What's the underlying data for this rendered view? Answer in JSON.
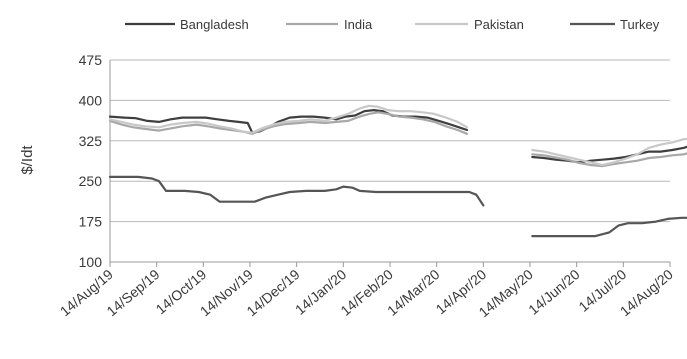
{
  "chart_data": {
    "type": "line",
    "ylabel": "$/Idt",
    "ylim": [
      100,
      475
    ],
    "yticks": [
      100,
      175,
      250,
      325,
      400,
      475
    ],
    "grid": "horizontal",
    "legend_position": "top",
    "categories": [
      "14/Aug/19",
      "14/Sep/19",
      "14/Oct/19",
      "14/Nov/19",
      "14/Dec/19",
      "14/Jan/20",
      "14/Feb/20",
      "14/Mar/20",
      "14/Apr/20",
      "14/May/20",
      "14/Jun/20",
      "14/Jul/20",
      "14/Aug/20"
    ],
    "series": [
      {
        "name": "Bangladesh",
        "color": "#3f3f3f",
        "segments": [
          [
            [
              0,
              370
            ],
            [
              0.3,
              368
            ],
            [
              0.55,
              367
            ],
            [
              0.8,
              362
            ],
            [
              1.05,
              360
            ],
            [
              1.3,
              365
            ],
            [
              1.55,
              368
            ],
            [
              1.8,
              368
            ],
            [
              2.05,
              368
            ],
            [
              2.3,
              365
            ],
            [
              2.55,
              362
            ],
            [
              2.75,
              360
            ],
            [
              2.95,
              358
            ],
            [
              3.05,
              340
            ],
            [
              3.2,
              342
            ],
            [
              3.4,
              350
            ],
            [
              3.6,
              360
            ],
            [
              3.85,
              368
            ],
            [
              4.1,
              370
            ],
            [
              4.35,
              370
            ],
            [
              4.6,
              368
            ],
            [
              4.85,
              365
            ],
            [
              5.05,
              370
            ],
            [
              5.25,
              372
            ],
            [
              5.45,
              380
            ],
            [
              5.65,
              382
            ],
            [
              5.85,
              380
            ],
            [
              6.05,
              372
            ],
            [
              6.3,
              370
            ],
            [
              6.55,
              370
            ],
            [
              6.8,
              368
            ],
            [
              7.05,
              362
            ],
            [
              7.3,
              355
            ],
            [
              7.55,
              348
            ],
            [
              7.65,
              345
            ]
          ],
          [
            [
              9.05,
              295
            ],
            [
              9.3,
              293
            ],
            [
              9.55,
              290
            ],
            [
              9.8,
              288
            ],
            [
              10.05,
              285
            ],
            [
              10.3,
              288
            ],
            [
              10.55,
              290
            ],
            [
              10.8,
              292
            ],
            [
              11.05,
              295
            ],
            [
              11.3,
              300
            ],
            [
              11.55,
              305
            ],
            [
              11.8,
              305
            ],
            [
              12.05,
              308
            ],
            [
              12.3,
              312
            ],
            [
              12.5,
              318
            ],
            [
              12.7,
              320
            ]
          ]
        ]
      },
      {
        "name": "India",
        "color": "#a8a8a8",
        "segments": [
          [
            [
              0,
              362
            ],
            [
              0.25,
              355
            ],
            [
              0.5,
              350
            ],
            [
              0.75,
              347
            ],
            [
              1.05,
              344
            ],
            [
              1.3,
              348
            ],
            [
              1.55,
              352
            ],
            [
              1.85,
              355
            ],
            [
              2.1,
              352
            ],
            [
              2.35,
              348
            ],
            [
              2.6,
              345
            ],
            [
              2.85,
              342
            ],
            [
              3.05,
              338
            ],
            [
              3.25,
              345
            ],
            [
              3.5,
              352
            ],
            [
              3.75,
              356
            ],
            [
              4.05,
              358
            ],
            [
              4.3,
              360
            ],
            [
              4.6,
              358
            ],
            [
              4.85,
              360
            ],
            [
              5.1,
              362
            ],
            [
              5.35,
              370
            ],
            [
              5.55,
              375
            ],
            [
              5.75,
              378
            ],
            [
              5.95,
              375
            ],
            [
              6.2,
              370
            ],
            [
              6.45,
              368
            ],
            [
              6.7,
              365
            ],
            [
              6.95,
              360
            ],
            [
              7.2,
              352
            ],
            [
              7.45,
              345
            ],
            [
              7.65,
              338
            ]
          ],
          [
            [
              9.05,
              300
            ],
            [
              9.3,
              298
            ],
            [
              9.55,
              294
            ],
            [
              9.8,
              290
            ],
            [
              10.05,
              284
            ],
            [
              10.3,
              280
            ],
            [
              10.55,
              278
            ],
            [
              10.8,
              282
            ],
            [
              11.05,
              285
            ],
            [
              11.3,
              288
            ],
            [
              11.55,
              293
            ],
            [
              11.8,
              295
            ],
            [
              12.05,
              298
            ],
            [
              12.3,
              300
            ],
            [
              12.5,
              305
            ],
            [
              12.7,
              310
            ]
          ]
        ]
      },
      {
        "name": "Pakistan",
        "color": "#c8c8c8",
        "segments": [
          [
            [
              0,
              365
            ],
            [
              0.25,
              360
            ],
            [
              0.5,
              355
            ],
            [
              0.75,
              352
            ],
            [
              1.05,
              350
            ],
            [
              1.3,
              355
            ],
            [
              1.55,
              358
            ],
            [
              1.85,
              360
            ],
            [
              2.1,
              357
            ],
            [
              2.35,
              352
            ],
            [
              2.6,
              348
            ],
            [
              2.85,
              342
            ],
            [
              3.05,
              340
            ],
            [
              3.25,
              348
            ],
            [
              3.5,
              355
            ],
            [
              3.75,
              360
            ],
            [
              4.05,
              362
            ],
            [
              4.3,
              365
            ],
            [
              4.6,
              362
            ],
            [
              4.85,
              368
            ],
            [
              5.1,
              375
            ],
            [
              5.35,
              385
            ],
            [
              5.55,
              390
            ],
            [
              5.75,
              388
            ],
            [
              5.95,
              382
            ],
            [
              6.2,
              380
            ],
            [
              6.45,
              380
            ],
            [
              6.7,
              378
            ],
            [
              6.95,
              375
            ],
            [
              7.2,
              368
            ],
            [
              7.45,
              360
            ],
            [
              7.65,
              350
            ]
          ],
          [
            [
              9.05,
              308
            ],
            [
              9.3,
              305
            ],
            [
              9.55,
              300
            ],
            [
              9.8,
              295
            ],
            [
              10.05,
              290
            ],
            [
              10.3,
              285
            ],
            [
              10.55,
              280
            ],
            [
              10.8,
              285
            ],
            [
              11.05,
              292
            ],
            [
              11.3,
              300
            ],
            [
              11.55,
              312
            ],
            [
              11.8,
              318
            ],
            [
              12.05,
              322
            ],
            [
              12.3,
              328
            ],
            [
              12.5,
              330
            ],
            [
              12.7,
              335
            ]
          ]
        ]
      },
      {
        "name": "Turkey",
        "color": "#555555",
        "segments": [
          [
            [
              0,
              258
            ],
            [
              0.3,
              258
            ],
            [
              0.6,
              258
            ],
            [
              0.9,
              255
            ],
            [
              1.05,
              250
            ],
            [
              1.2,
              232
            ],
            [
              1.6,
              232
            ],
            [
              1.9,
              230
            ],
            [
              2.15,
              225
            ],
            [
              2.35,
              212
            ],
            [
              2.7,
              212
            ],
            [
              3.1,
              212
            ],
            [
              3.35,
              220
            ],
            [
              3.6,
              225
            ],
            [
              3.85,
              230
            ],
            [
              4.2,
              232
            ],
            [
              4.6,
              232
            ],
            [
              4.85,
              235
            ],
            [
              5.0,
              240
            ],
            [
              5.2,
              238
            ],
            [
              5.35,
              232
            ],
            [
              5.7,
              230
            ],
            [
              6.1,
              230
            ],
            [
              6.5,
              230
            ],
            [
              6.9,
              230
            ],
            [
              7.3,
              230
            ],
            [
              7.7,
              230
            ],
            [
              7.85,
              225
            ],
            [
              8.0,
              205
            ]
          ],
          [
            [
              9.05,
              148
            ],
            [
              9.5,
              148
            ],
            [
              10.0,
              148
            ],
            [
              10.4,
              148
            ],
            [
              10.7,
              155
            ],
            [
              10.9,
              168
            ],
            [
              11.1,
              172
            ],
            [
              11.4,
              172
            ],
            [
              11.7,
              175
            ],
            [
              11.95,
              180
            ],
            [
              12.25,
              182
            ],
            [
              12.5,
              182
            ],
            [
              12.7,
              182
            ]
          ]
        ]
      }
    ]
  }
}
